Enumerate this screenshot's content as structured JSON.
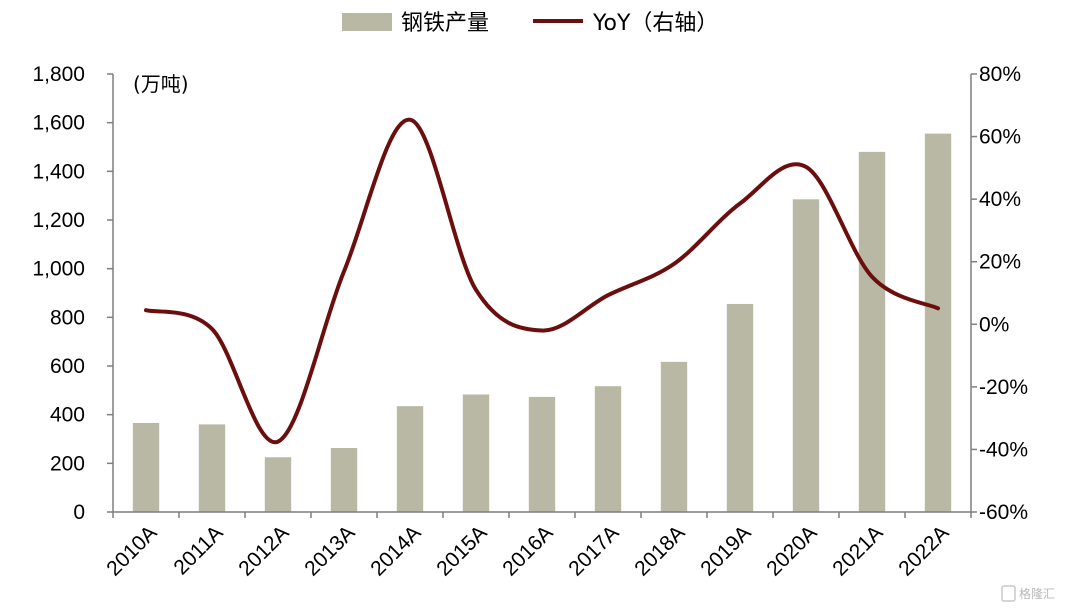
{
  "chart_data": {
    "type": "bar",
    "categories": [
      "2010A",
      "2011A",
      "2012A",
      "2013A",
      "2014A",
      "2015A",
      "2016A",
      "2017A",
      "2018A",
      "2019A",
      "2020A",
      "2021A",
      "2022A"
    ],
    "series": [
      {
        "name": "钢铁产量",
        "type": "bar",
        "axis": "left",
        "values": [
          366,
          360,
          225,
          263,
          435,
          483,
          473,
          517,
          617,
          855,
          1285,
          1480,
          1555
        ]
      },
      {
        "name": "YoY（右轴）",
        "type": "line",
        "axis": "right",
        "smooth": true,
        "values": [
          4.5,
          -1.5,
          -37.5,
          16.9,
          65.4,
          11.0,
          -2.0,
          9.3,
          19.3,
          38.6,
          50.3,
          15.2,
          5.1
        ]
      }
    ],
    "unit_label": "(万吨)",
    "y_left": {
      "min": 0,
      "max": 1800,
      "ticks": [
        "0",
        "200",
        "400",
        "600",
        "800",
        "1,000",
        "1,200",
        "1,400",
        "1,600",
        "1,800"
      ]
    },
    "y_right": {
      "min": -60,
      "max": 80,
      "ticks": [
        "-60%",
        "-40%",
        "-20%",
        "0%",
        "20%",
        "40%",
        "60%",
        "80%"
      ]
    },
    "legend": {
      "position": "top-center"
    },
    "grid": false,
    "colors": {
      "bar": "#b9b8a5",
      "line": "#6b0e0e",
      "axis": "#7f7f7f"
    }
  },
  "watermark": "格隆汇"
}
